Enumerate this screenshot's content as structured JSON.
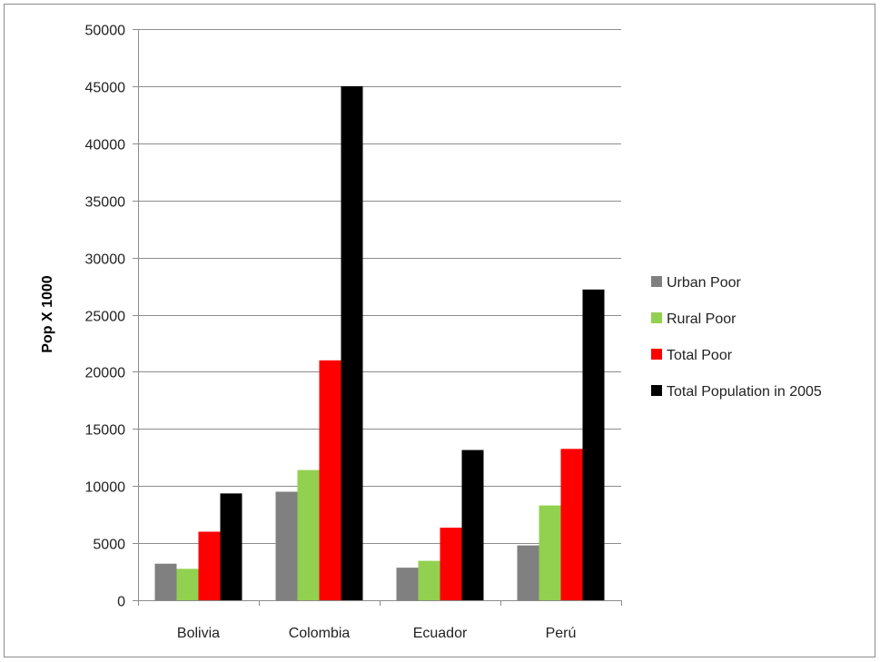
{
  "chart_data": {
    "type": "bar",
    "title": "",
    "xlabel": "",
    "ylabel": "Pop  X 1000",
    "ylim": [
      0,
      50000
    ],
    "yticks": [
      0,
      5000,
      10000,
      15000,
      20000,
      25000,
      30000,
      35000,
      40000,
      45000,
      50000
    ],
    "grid": true,
    "legend_position": "right",
    "categories": [
      "Bolivia",
      "Colombia",
      "Ecuador",
      "Perú"
    ],
    "series": [
      {
        "name": "Urban Poor",
        "color": "#808080",
        "values": [
          3200,
          9500,
          2850,
          4800
        ]
      },
      {
        "name": "Rural Poor",
        "color": "#92d050",
        "values": [
          2750,
          11400,
          3450,
          8300
        ]
      },
      {
        "name": "Total Poor",
        "color": "#ff0000",
        "values": [
          6000,
          21000,
          6350,
          13250
        ]
      },
      {
        "name": "Total Population in 2005",
        "color": "#000000",
        "values": [
          9350,
          45000,
          13150,
          27200
        ]
      }
    ]
  }
}
